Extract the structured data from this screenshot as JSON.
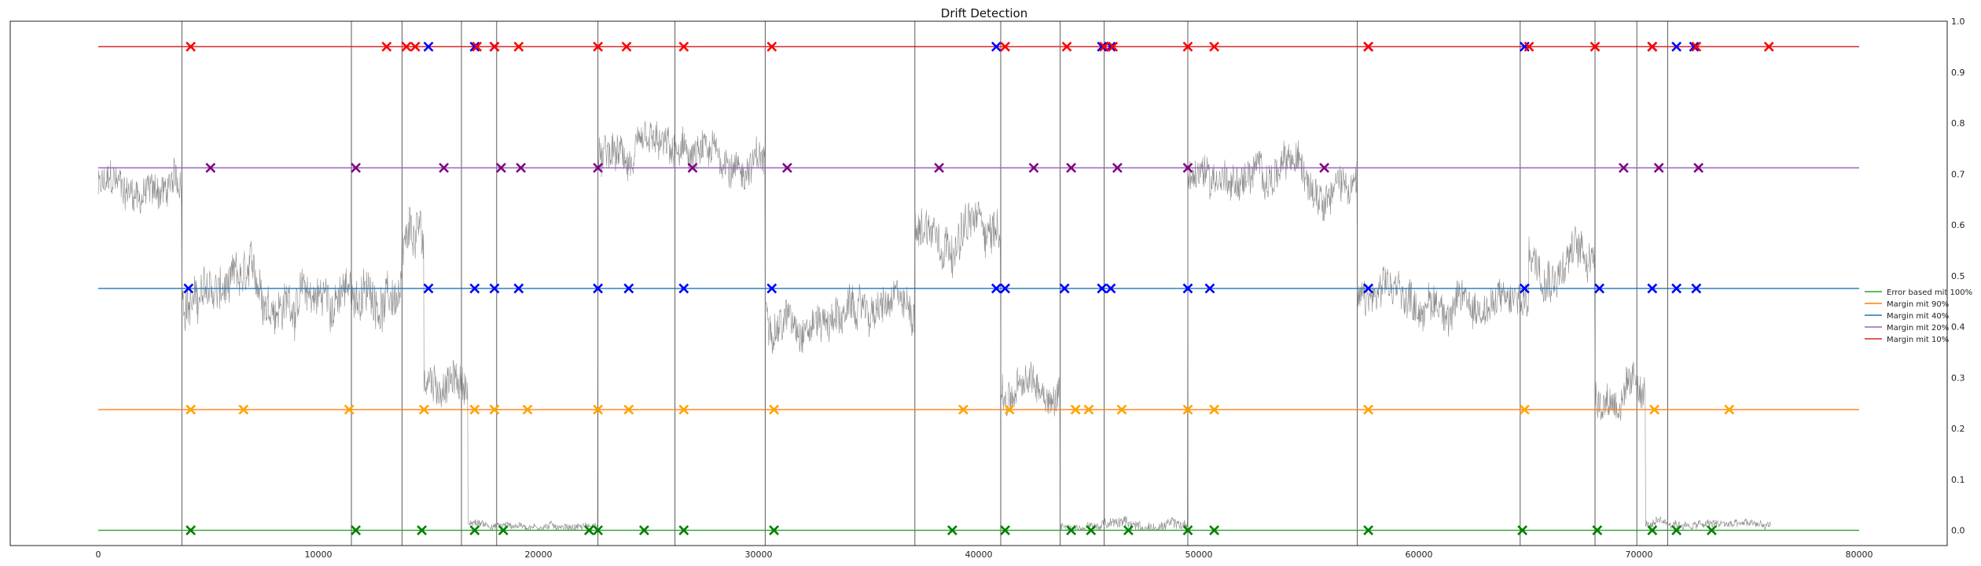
{
  "chart_data": {
    "type": "line",
    "title": "Drift Detection",
    "xlabel": "",
    "ylabel": "",
    "xlim": [
      -4000,
      84000
    ],
    "ylim": [
      -0.03,
      1.0
    ],
    "x_ticks": [
      0,
      10000,
      20000,
      30000,
      40000,
      50000,
      60000,
      70000,
      80000
    ],
    "y_ticks": [
      0.0,
      0.1,
      0.2,
      0.3,
      0.4,
      0.5,
      0.6,
      0.7,
      0.8,
      0.9,
      1.0
    ],
    "y_axis_side": "right",
    "grid": false,
    "legend": "right",
    "drift_lines": [
      3800,
      11500,
      13800,
      16500,
      18100,
      22700,
      26200,
      30300,
      37100,
      41000,
      43700,
      45700,
      49500,
      57200,
      64600,
      68000,
      69900,
      71300
    ],
    "signal": {
      "color": "#7f7f7f",
      "segments": [
        {
          "x0": 0,
          "x1": 3800,
          "level": 0.67,
          "noise": 0.05
        },
        {
          "x0": 3800,
          "x1": 13800,
          "level": 0.46,
          "noise": 0.06
        },
        {
          "x0": 13800,
          "x1": 14800,
          "level": 0.55,
          "noise": 0.07
        },
        {
          "x0": 14800,
          "x1": 16800,
          "level": 0.29,
          "noise": 0.05
        },
        {
          "x0": 16800,
          "x1": 22700,
          "level": 0.01,
          "noise": 0.01
        },
        {
          "x0": 22700,
          "x1": 30300,
          "level": 0.72,
          "noise": 0.05
        },
        {
          "x0": 30300,
          "x1": 37100,
          "level": 0.43,
          "noise": 0.05
        },
        {
          "x0": 37100,
          "x1": 41000,
          "level": 0.6,
          "noise": 0.06
        },
        {
          "x0": 41000,
          "x1": 43700,
          "level": 0.27,
          "noise": 0.05
        },
        {
          "x0": 43700,
          "x1": 49500,
          "level": 0.01,
          "noise": 0.015
        },
        {
          "x0": 49500,
          "x1": 57200,
          "level": 0.7,
          "noise": 0.05
        },
        {
          "x0": 57200,
          "x1": 65000,
          "level": 0.45,
          "noise": 0.05
        },
        {
          "x0": 65000,
          "x1": 68000,
          "level": 0.55,
          "noise": 0.06
        },
        {
          "x0": 68000,
          "x1": 70300,
          "level": 0.27,
          "noise": 0.05
        },
        {
          "x0": 70300,
          "x1": 76000,
          "level": 0.01,
          "noise": 0.012
        }
      ]
    },
    "series": [
      {
        "name": "Error based mit 100%",
        "color": "#2ca02c",
        "marker_color": "#008000",
        "level": 0.0,
        "x_start": 0,
        "x_end": 80000,
        "detections": [
          4200,
          11700,
          14700,
          17100,
          18400,
          22300,
          22700,
          24800,
          26600,
          30700,
          38800,
          41200,
          44200,
          45100,
          46800,
          49500,
          50700,
          57700,
          64700,
          68100,
          70600,
          71700,
          73300
        ]
      },
      {
        "name": "Margin mit 90%",
        "color": "#ff7f0e",
        "marker_color": "#ffa500",
        "level": 0.237,
        "x_start": 0,
        "x_end": 80000,
        "detections": [
          4200,
          6600,
          11400,
          14800,
          17100,
          18000,
          19500,
          22700,
          24100,
          26600,
          30700,
          39300,
          41400,
          44400,
          45000,
          46500,
          49500,
          50700,
          57700,
          64800,
          70700,
          74100
        ]
      },
      {
        "name": "Margin mit 40%",
        "color": "#1f77b4",
        "marker_color": "#0000ff",
        "level": 0.475,
        "x_start": 0,
        "x_end": 80000,
        "detections": [
          4100,
          15000,
          17100,
          18000,
          19100,
          22700,
          24100,
          26600,
          30600,
          40800,
          41200,
          43900,
          45600,
          46000,
          49500,
          50500,
          57700,
          64800,
          68200,
          70600,
          71700,
          72600
        ]
      },
      {
        "name": "Margin mit 20%",
        "color": "#9467bd",
        "marker_color": "#800080",
        "level": 0.712,
        "x_start": 0,
        "x_end": 80000,
        "detections": [
          5100,
          11700,
          15700,
          18300,
          19200,
          22700,
          27000,
          31300,
          38200,
          42500,
          44200,
          46300,
          49500,
          55700,
          69300,
          70900,
          72700
        ]
      },
      {
        "name": "Margin mit 10%",
        "color": "#d62728",
        "marker_color": "#ff0000",
        "level": 0.95,
        "x_start": 0,
        "x_end": 80000,
        "detections": [
          4200,
          13100,
          14000,
          14400,
          17200,
          18000,
          19100,
          22700,
          24000,
          26600,
          30600,
          41200,
          44000,
          45700,
          46100,
          49500,
          50700,
          57700,
          65000,
          68000,
          70600,
          72600,
          75900
        ],
        "blue_detections": [
          15000,
          17100,
          18000,
          40800,
          45600,
          46000,
          57700,
          64800,
          70600,
          71700,
          72500
        ]
      }
    ]
  }
}
